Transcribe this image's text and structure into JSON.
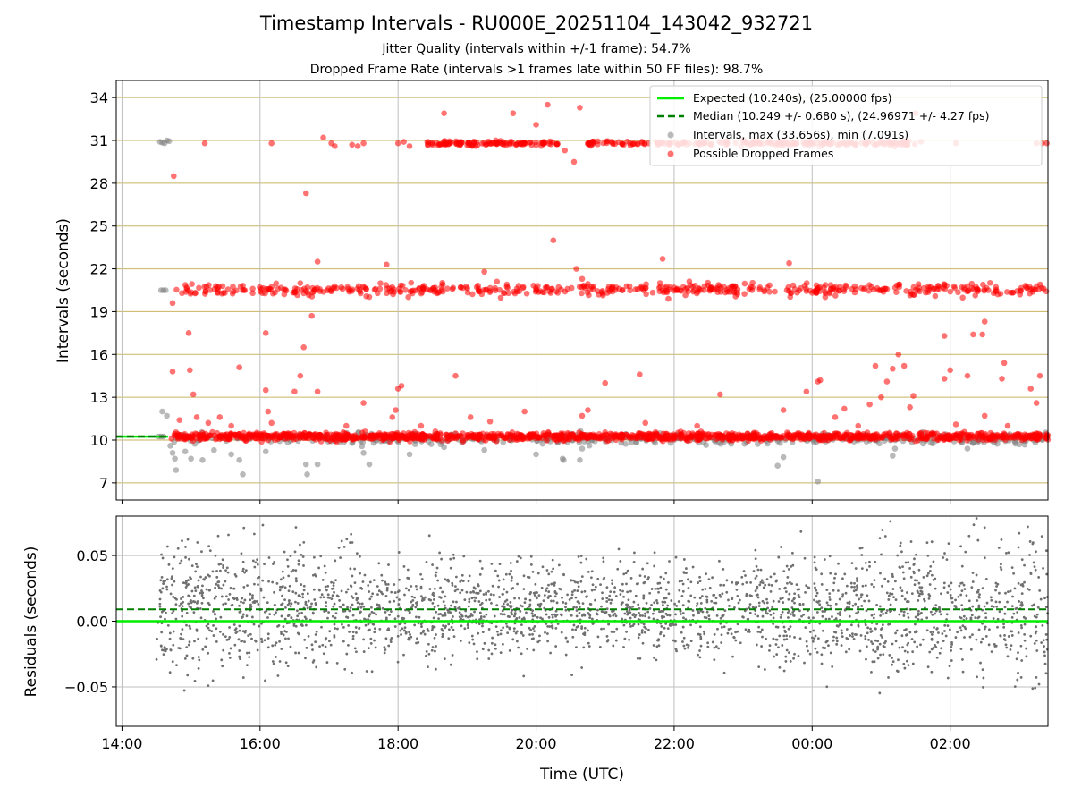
{
  "title": "Timestamp Intervals - RU000E_20251104_143042_932721",
  "subtitle_jitter": "Jitter Quality (intervals within +/-1 frame): 54.7%",
  "subtitle_dropped": "Dropped Frame Rate (intervals >1 frames late within 50 FF files): 98.7%",
  "colors": {
    "expected": "#00ee00",
    "median": "#008000",
    "intervals": "#808080",
    "dropped": "#ff0000",
    "hgrid": "#c8b560",
    "vgrid": "#bfbfbf",
    "residuals": "#707070"
  },
  "chart_data": [
    {
      "type": "scatter",
      "xlabel": "",
      "ylabel": "Intervals (seconds)",
      "xlim": [
        "2025-11-04 13:55",
        "2025-11-05 03:25"
      ],
      "ylim": [
        5.8,
        35.2
      ],
      "yticks": [
        7,
        10,
        13,
        16,
        19,
        22,
        25,
        28,
        31,
        34
      ],
      "xticks": [
        "2025-11-04 14:00",
        "2025-11-04 16:00",
        "2025-11-04 18:00",
        "2025-11-04 20:00",
        "2025-11-04 22:00",
        "2025-11-05 00:00",
        "2025-11-05 02:00"
      ],
      "grid": true,
      "legend_position": "top-right",
      "expected": {
        "label": "Expected (10.240s), (25.00000 fps)",
        "value": 10.24
      },
      "median": {
        "label": "Median (10.249 +/- 0.680 s), (24.96971 +/- 4.27 fps)",
        "value": 10.249
      },
      "intervals": {
        "label": "Intervals, max (33.656s), min (7.091s)",
        "points": [
          [
            "2025-11-04 14:33",
            30.9
          ],
          [
            "2025-11-04 14:35",
            30.85
          ],
          [
            "2025-11-04 14:37",
            30.8
          ],
          [
            "2025-11-04 14:39",
            31.0
          ],
          [
            "2025-11-04 14:41",
            30.95
          ],
          [
            "2025-11-04 14:34",
            20.5
          ],
          [
            "2025-11-04 14:36",
            20.5
          ],
          [
            "2025-11-04 14:38",
            20.5
          ],
          [
            "2025-11-04 14:35",
            12.0
          ],
          [
            "2025-11-04 14:39",
            11.7
          ],
          [
            "2025-11-04 14:32",
            10.25
          ],
          [
            "2025-11-04 14:34",
            10.25
          ],
          [
            "2025-11-04 14:36",
            10.25
          ],
          [
            "2025-11-04 14:42",
            9.6
          ],
          [
            "2025-11-04 14:44",
            9.1
          ],
          [
            "2025-11-04 14:46",
            8.7
          ],
          [
            "2025-11-04 14:47",
            7.9
          ],
          [
            "2025-11-04 14:55",
            9.2
          ],
          [
            "2025-11-04 15:00",
            8.7
          ],
          [
            "2025-11-04 15:10",
            8.6
          ],
          [
            "2025-11-04 15:20",
            9.3
          ],
          [
            "2025-11-04 15:35",
            9.0
          ],
          [
            "2025-11-04 15:42",
            8.6
          ],
          [
            "2025-11-04 15:45",
            7.6
          ],
          [
            "2025-11-04 16:05",
            9.2
          ],
          [
            "2025-11-04 16:40",
            8.3
          ],
          [
            "2025-11-04 16:41",
            7.6
          ],
          [
            "2025-11-04 16:50",
            8.3
          ],
          [
            "2025-11-04 17:30",
            9.1
          ],
          [
            "2025-11-04 17:35",
            8.3
          ],
          [
            "2025-11-04 18:10",
            9.0
          ],
          [
            "2025-11-04 18:40",
            9.5
          ],
          [
            "2025-11-04 19:15",
            9.3
          ],
          [
            "2025-11-04 20:00",
            9.0
          ],
          [
            "2025-11-04 20:23",
            8.7
          ],
          [
            "2025-11-04 20:24",
            8.6
          ],
          [
            "2025-11-04 20:38",
            8.6
          ],
          [
            "2025-11-04 20:40",
            9.4
          ],
          [
            "2025-11-04 23:30",
            8.2
          ],
          [
            "2025-11-04 23:35",
            8.8
          ],
          [
            "2025-11-05 00:05",
            7.1
          ],
          [
            "2025-11-05 01:10",
            8.9
          ],
          [
            "2025-11-05 01:12",
            9.4
          ],
          [
            "2025-11-05 02:15",
            9.4
          ],
          [
            "2025-11-05 02:20",
            9.8
          ],
          [
            "2025-11-05 03:00",
            9.7
          ]
        ]
      },
      "dropped": {
        "label": "Possible Dropped Frames",
        "points": [
          [
            "2025-11-04 14:45",
            28.5
          ],
          [
            "2025-11-04 15:12",
            30.8
          ],
          [
            "2025-11-04 16:10",
            30.8
          ],
          [
            "2025-11-04 16:40",
            27.3
          ],
          [
            "2025-11-04 16:55",
            31.2
          ],
          [
            "2025-11-04 17:02",
            30.8
          ],
          [
            "2025-11-04 17:05",
            30.6
          ],
          [
            "2025-11-04 17:20",
            30.7
          ],
          [
            "2025-11-04 17:25",
            30.6
          ],
          [
            "2025-11-04 17:30",
            30.8
          ],
          [
            "2025-11-04 18:00",
            30.8
          ],
          [
            "2025-11-04 18:05",
            30.9
          ],
          [
            "2025-11-04 18:10",
            30.6
          ],
          [
            "2025-11-04 18:40",
            32.9
          ],
          [
            "2025-11-04 19:40",
            32.9
          ],
          [
            "2025-11-04 20:00",
            32.1
          ],
          [
            "2025-11-04 20:10",
            33.5
          ],
          [
            "2025-11-04 20:25",
            30.3
          ],
          [
            "2025-11-04 20:33",
            29.5
          ],
          [
            "2025-11-04 20:38",
            33.3
          ],
          [
            "2025-11-04 20:45",
            30.8
          ],
          [
            "2025-11-04 20:50",
            30.9
          ],
          [
            "2025-11-05 01:30",
            32.9
          ],
          [
            "2025-11-05 02:05",
            30.8
          ],
          [
            "2025-11-05 03:15",
            30.8
          ],
          [
            "2025-11-05 03:20",
            30.8
          ],
          [
            "2025-11-05 03:24",
            30.8
          ],
          [
            "2025-11-04 14:44",
            19.6
          ],
          [
            "2025-11-04 16:05",
            17.5
          ],
          [
            "2025-11-04 16:35",
            21.0
          ],
          [
            "2025-11-04 16:45",
            18.7
          ],
          [
            "2025-11-04 16:50",
            22.5
          ],
          [
            "2025-11-04 17:50",
            22.3
          ],
          [
            "2025-11-04 19:15",
            21.8
          ],
          [
            "2025-11-04 20:15",
            24.0
          ],
          [
            "2025-11-04 20:35",
            22.0
          ],
          [
            "2025-11-04 20:40",
            21.3
          ],
          [
            "2025-11-04 21:50",
            22.7
          ],
          [
            "2025-11-04 21:55",
            19.9
          ],
          [
            "2025-11-04 23:40",
            22.4
          ],
          [
            "2025-11-05 02:20",
            17.4
          ],
          [
            "2025-11-05 02:28",
            17.4
          ],
          [
            "2025-11-05 02:30",
            18.3
          ],
          [
            "2025-11-05 01:55",
            17.3
          ],
          [
            "2025-11-04 14:44",
            14.8
          ],
          [
            "2025-11-04 14:58",
            17.5
          ],
          [
            "2025-11-04 14:59",
            14.9
          ],
          [
            "2025-11-04 15:02",
            13.2
          ],
          [
            "2025-11-04 15:42",
            15.1
          ],
          [
            "2025-11-04 16:05",
            13.5
          ],
          [
            "2025-11-04 16:07",
            12.0
          ],
          [
            "2025-11-04 16:30",
            13.4
          ],
          [
            "2025-11-04 16:35",
            14.5
          ],
          [
            "2025-11-04 16:38",
            16.5
          ],
          [
            "2025-11-04 16:50",
            13.4
          ],
          [
            "2025-11-04 17:30",
            12.6
          ],
          [
            "2025-11-04 17:55",
            11.6
          ],
          [
            "2025-11-04 17:58",
            12.1
          ],
          [
            "2025-11-04 18:00",
            13.6
          ],
          [
            "2025-11-04 18:03",
            13.8
          ],
          [
            "2025-11-04 18:50",
            14.5
          ],
          [
            "2025-11-04 19:03",
            11.6
          ],
          [
            "2025-11-04 19:20",
            11.3
          ],
          [
            "2025-11-04 19:50",
            12.0
          ],
          [
            "2025-11-04 20:40",
            11.7
          ],
          [
            "2025-11-04 20:45",
            12.1
          ],
          [
            "2025-11-04 21:00",
            14.0
          ],
          [
            "2025-11-04 21:30",
            14.6
          ],
          [
            "2025-11-04 21:35",
            11.2
          ],
          [
            "2025-11-04 22:40",
            13.2
          ],
          [
            "2025-11-04 23:35",
            12.1
          ],
          [
            "2025-11-04 23:55",
            13.4
          ],
          [
            "2025-11-05 00:05",
            14.1
          ],
          [
            "2025-11-05 00:07",
            14.2
          ],
          [
            "2025-11-05 00:20",
            11.6
          ],
          [
            "2025-11-05 00:28",
            12.2
          ],
          [
            "2025-11-05 00:50",
            12.5
          ],
          [
            "2025-11-05 00:55",
            15.2
          ],
          [
            "2025-11-05 01:00",
            13.0
          ],
          [
            "2025-11-05 01:05",
            14.1
          ],
          [
            "2025-11-05 01:10",
            15.0
          ],
          [
            "2025-11-05 01:15",
            16.0
          ],
          [
            "2025-11-05 01:20",
            15.2
          ],
          [
            "2025-11-05 01:25",
            12.3
          ],
          [
            "2025-11-05 01:28",
            13.1
          ],
          [
            "2025-11-05 01:55",
            14.3
          ],
          [
            "2025-11-05 02:00",
            14.9
          ],
          [
            "2025-11-05 02:05",
            11.1
          ],
          [
            "2025-11-05 02:15",
            14.5
          ],
          [
            "2025-11-05 02:30",
            11.7
          ],
          [
            "2025-11-05 02:45",
            14.3
          ],
          [
            "2025-11-05 02:47",
            15.4
          ],
          [
            "2025-11-05 03:10",
            13.6
          ],
          [
            "2025-11-05 03:15",
            12.6
          ],
          [
            "2025-11-05 03:18",
            14.5
          ],
          [
            "2025-11-04 14:50",
            11.4
          ],
          [
            "2025-11-04 15:05",
            11.6
          ],
          [
            "2025-11-04 15:15",
            11.2
          ],
          [
            "2025-11-04 15:25",
            11.6
          ],
          [
            "2025-11-04 15:35",
            11.0
          ],
          [
            "2025-11-04 16:10",
            11.2
          ],
          [
            "2025-11-04 17:15",
            11.0
          ],
          [
            "2025-11-04 18:20",
            11.0
          ],
          [
            "2025-11-04 22:20",
            11.0
          ],
          [
            "2025-11-05 00:40",
            11.0
          ],
          [
            "2025-11-05 02:50",
            11.0
          ]
        ],
        "bands": [
          {
            "from": "2025-11-04 18:25",
            "to": "2025-11-04 20:20",
            "y": 30.8,
            "spread": 0.15,
            "count": 120
          },
          {
            "from": "2025-11-04 20:45",
            "to": "2025-11-05 01:35",
            "y": 30.8,
            "spread": 0.15,
            "count": 230
          },
          {
            "from": "2025-11-04 14:45",
            "to": "2025-11-05 03:25",
            "y": 20.55,
            "spread": 0.35,
            "count": 540
          },
          {
            "from": "2025-11-04 14:43",
            "to": "2025-11-05 03:25",
            "y": 10.25,
            "spread": 0.22,
            "count": 1400
          }
        ],
        "gray_band": {
          "from": "2025-11-04 14:40",
          "to": "2025-11-05 03:25",
          "y": 10.1,
          "spread": 0.35,
          "count": 420
        }
      }
    },
    {
      "type": "scatter",
      "xlabel": "Time (UTC)",
      "ylabel": "Residuals (seconds)",
      "xlim": [
        "2025-11-04 13:55",
        "2025-11-05 03:25"
      ],
      "ylim": [
        -0.08,
        0.08
      ],
      "yticks": [
        0.05,
        0.0,
        -0.05
      ],
      "ytick_labels": [
        "0.05",
        "0.00",
        "−0.05"
      ],
      "xticks": [
        "2025-11-04 14:00",
        "2025-11-04 16:00",
        "2025-11-04 18:00",
        "2025-11-04 20:00",
        "2025-11-04 22:00",
        "2025-11-05 00:00",
        "2025-11-05 02:00"
      ],
      "xtick_labels": [
        "14:00",
        "16:00",
        "18:00",
        "20:00",
        "22:00",
        "00:00",
        "02:00"
      ],
      "grid": true,
      "expected": 0.0,
      "median": 0.009,
      "residuals": {
        "from": "2025-11-04 14:30",
        "to": "2025-11-05 03:25",
        "count": 2600,
        "range": [
          -0.08,
          0.08
        ]
      }
    }
  ]
}
